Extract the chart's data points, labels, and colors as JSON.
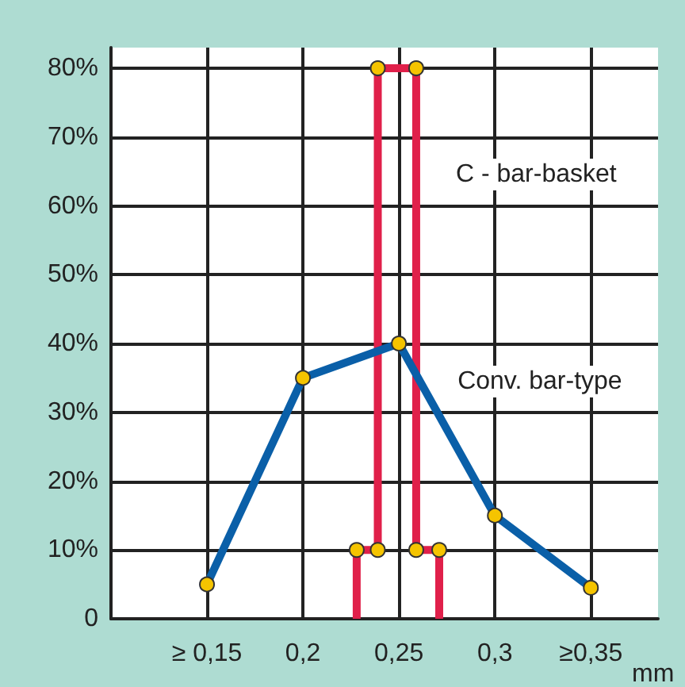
{
  "chart_data": {
    "type": "line",
    "xlabel": "mm",
    "series": [
      {
        "name": "C - bar-basket",
        "color": "#e0204a",
        "x": [
          0.228,
          0.228,
          0.239,
          0.239,
          0.259,
          0.259,
          0.271,
          0.271
        ],
        "values": [
          0,
          10,
          10,
          80,
          80,
          10,
          10,
          0
        ]
      },
      {
        "name": "Conv. bar-type",
        "color": "#0a5fa8",
        "x": [
          0.15,
          0.2,
          0.25,
          0.3,
          0.35
        ],
        "values": [
          5,
          35,
          40,
          15,
          4.5
        ]
      }
    ],
    "xlim": [
      0.1,
      0.385
    ],
    "xticks": [
      {
        "value": 0.15,
        "label": "≥ 0,15"
      },
      {
        "value": 0.2,
        "label": "0,2"
      },
      {
        "value": 0.25,
        "label": "0,25"
      },
      {
        "value": 0.3,
        "label": "0,3"
      },
      {
        "value": 0.35,
        "label": "≥0,35"
      }
    ],
    "ylim": [
      0,
      83
    ],
    "yticks": [
      0,
      {
        "value": 10,
        "label": "10%"
      },
      {
        "value": 20,
        "label": "20%"
      },
      {
        "value": 30,
        "label": "30%"
      },
      {
        "value": 40,
        "label": "40%"
      },
      {
        "value": 50,
        "label": "50%"
      },
      {
        "value": 60,
        "label": "60%"
      },
      {
        "value": 70,
        "label": "70%"
      },
      {
        "value": 80,
        "label": "80%"
      }
    ],
    "grid": true,
    "marker": "circle"
  }
}
